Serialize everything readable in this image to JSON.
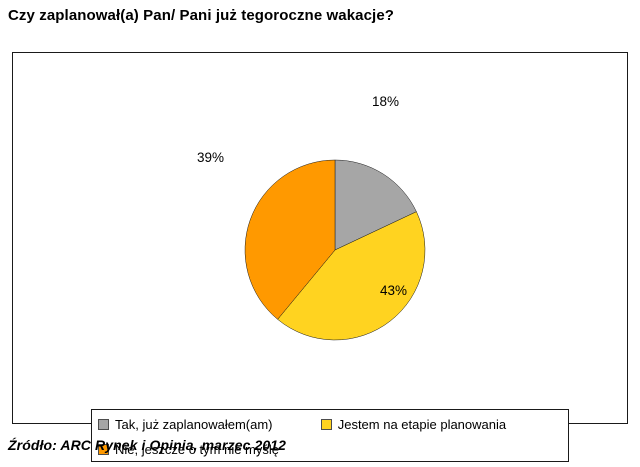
{
  "page": {
    "title": "Czy zaplanował(a) Pan/ Pani już tegoroczne wakacje?",
    "source": "Źródło: ARC Rynek i Opinia, marzec 2012"
  },
  "chart_data": {
    "type": "pie",
    "title": "Czy zaplanował(a) Pan/ Pani już tegoroczne wakacje?",
    "start_angle_deg": 0,
    "direction": "clockwise",
    "legend_position": "bottom",
    "slices": [
      {
        "label": "Tak, już zaplanowałem(am)",
        "value": 18,
        "data_label": "18%",
        "color": "#a6a6a6"
      },
      {
        "label": "Jestem na etapie planowania",
        "value": 43,
        "data_label": "43%",
        "color": "#ffd320"
      },
      {
        "label": "Nie, jeszcze o tym nie myślę",
        "value": 39,
        "data_label": "39%",
        "color": "#ff9900"
      }
    ],
    "source": "Źródło: ARC Rynek i Opinia, marzec 2012"
  }
}
